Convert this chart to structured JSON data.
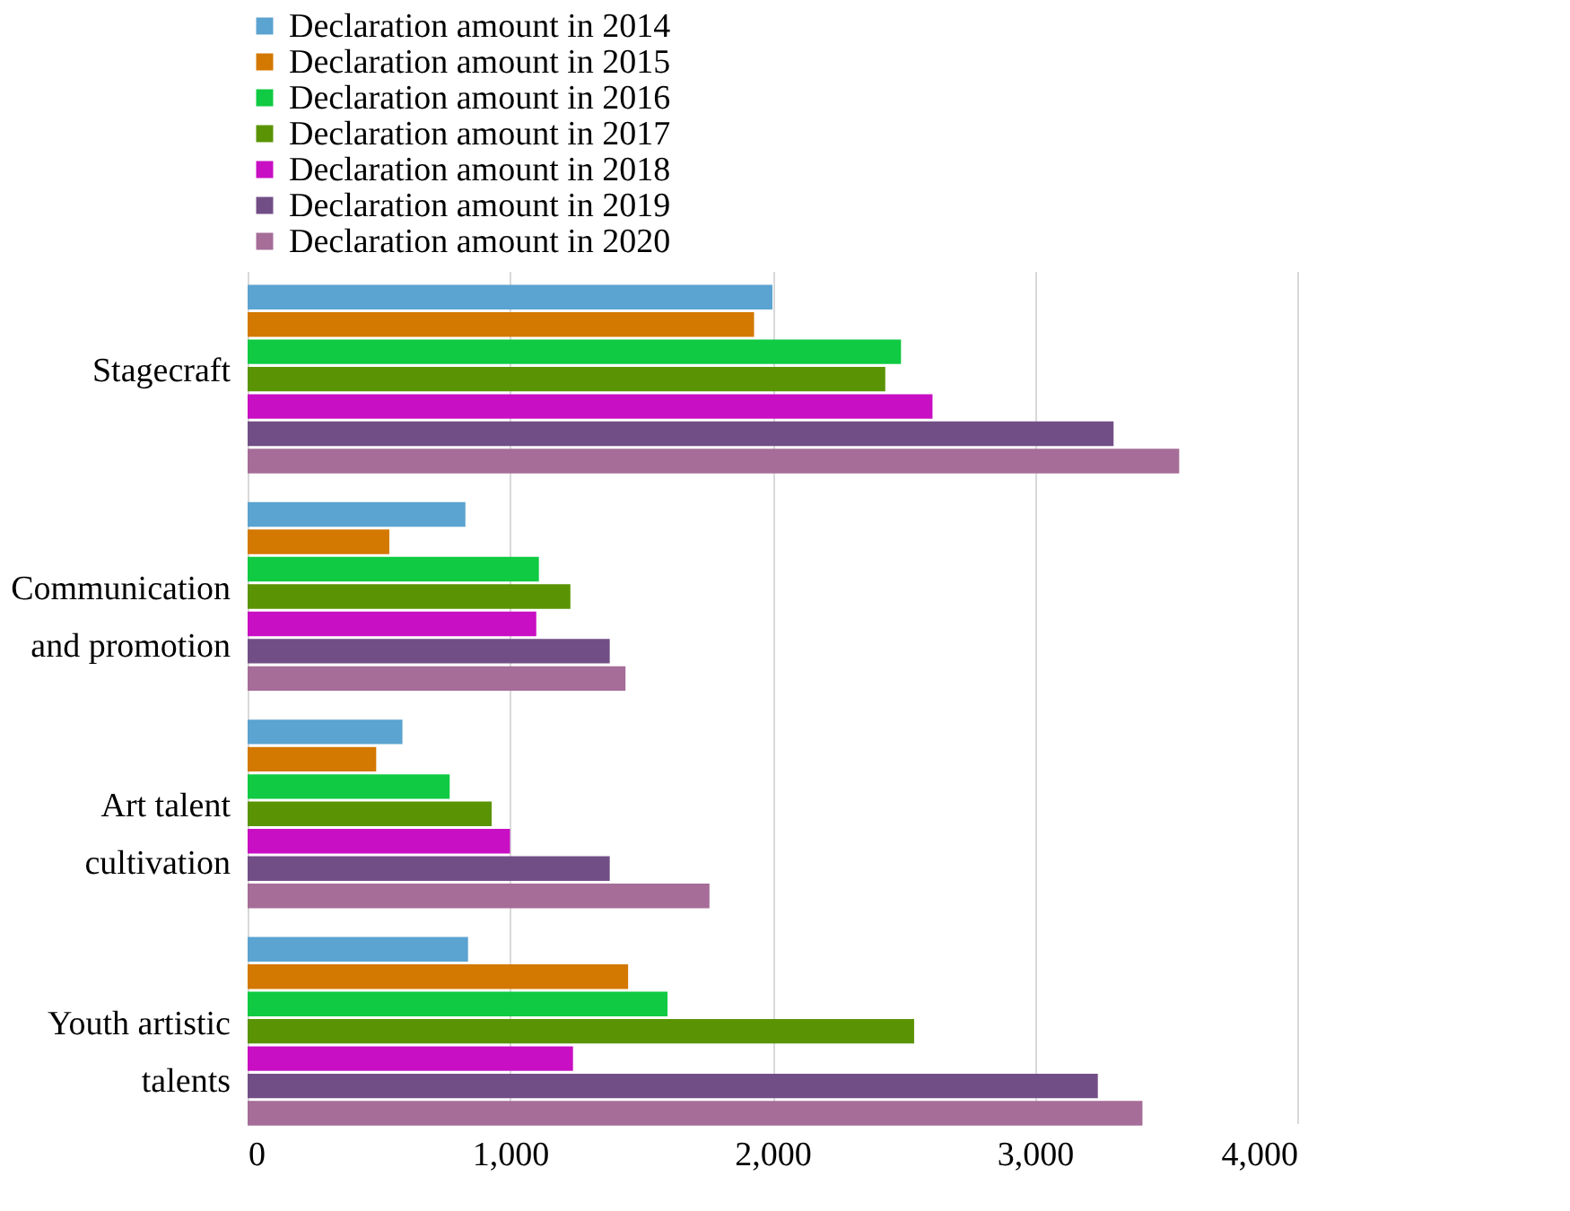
{
  "chart_data": {
    "type": "bar",
    "orientation": "horizontal",
    "categories": [
      "Stagecraft",
      "Communication and promotion",
      "Art talent cultivation",
      "Youth artistic talents"
    ],
    "series": [
      {
        "name": "Declaration amount in 2014",
        "color": "#5ba3d0",
        "values": [
          2000,
          830,
          590,
          840
        ]
      },
      {
        "name": "Declaration amount in 2015",
        "color": "#d37800",
        "values": [
          1930,
          540,
          490,
          1450
        ]
      },
      {
        "name": "Declaration amount in 2016",
        "color": "#0fca42",
        "values": [
          2490,
          1110,
          770,
          1600
        ]
      },
      {
        "name": "Declaration amount in 2017",
        "color": "#5a9404",
        "values": [
          2430,
          1230,
          930,
          2540
        ]
      },
      {
        "name": "Declaration amount in 2018",
        "color": "#c80fc3",
        "values": [
          2610,
          1100,
          1000,
          1240
        ]
      },
      {
        "name": "Declaration amount in 2019",
        "color": "#724e86",
        "values": [
          3300,
          1380,
          1380,
          3240
        ]
      },
      {
        "name": "Declaration amount in 2020",
        "color": "#a56d98",
        "values": [
          3550,
          1440,
          1760,
          3410
        ]
      }
    ],
    "xlim": [
      0,
      4000
    ],
    "xticks": [
      {
        "value": 0,
        "label": "0"
      },
      {
        "value": 1000,
        "label": "1,000"
      },
      {
        "value": 2000,
        "label": "2,000"
      },
      {
        "value": 3000,
        "label": "3,000"
      },
      {
        "value": 4000,
        "label": "4,000"
      }
    ],
    "grid": "x",
    "legend": "top"
  }
}
